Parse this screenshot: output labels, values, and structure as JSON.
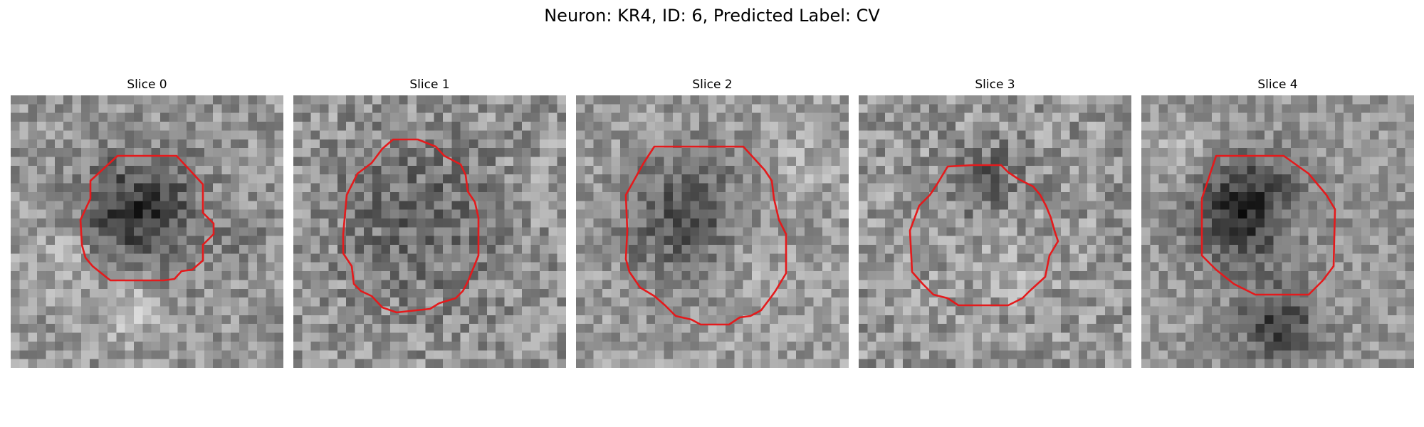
{
  "figure": {
    "title": "Neuron: KR4, ID: 6, Predicted Label: CV",
    "colormap": "gray",
    "contour_color": "#e41a1c"
  },
  "panels": [
    {
      "title": "Slice 0"
    },
    {
      "title": "Slice 1"
    },
    {
      "title": "Slice 2"
    },
    {
      "title": "Slice 3"
    },
    {
      "title": "Slice 4"
    }
  ]
}
